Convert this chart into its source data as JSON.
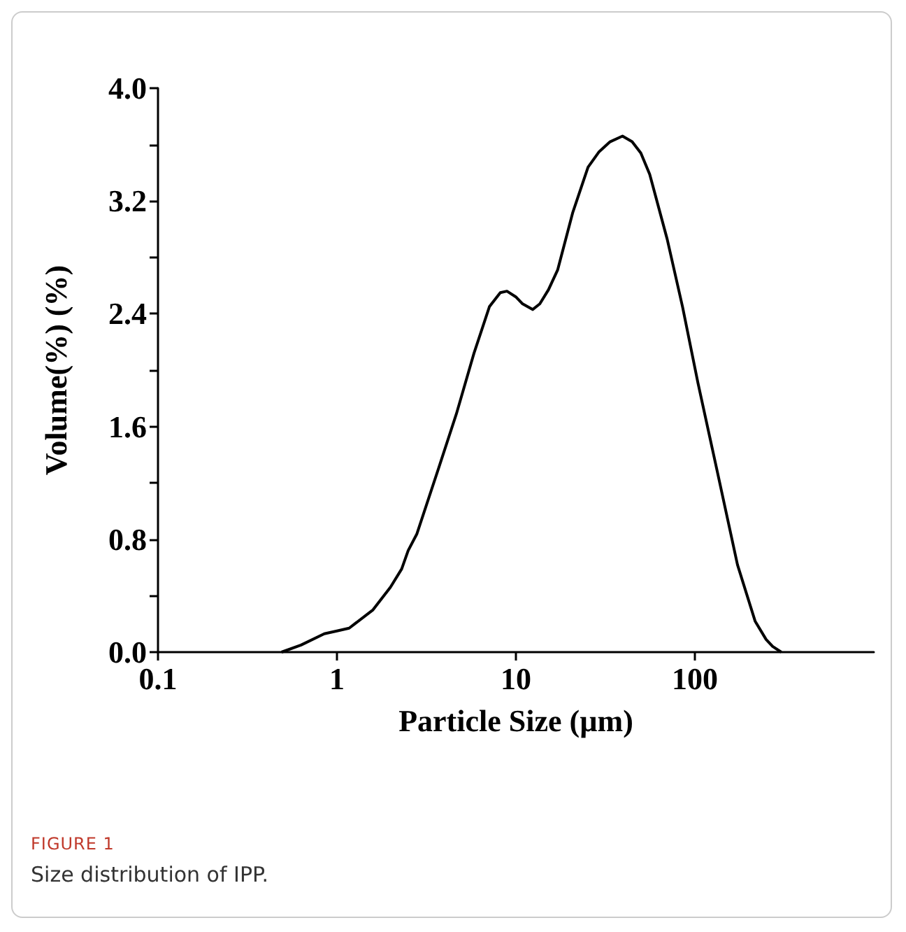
{
  "chart_data": {
    "type": "line",
    "xlabel": "Particle Size (µm)",
    "ylabel": "Volume(%) (%)",
    "log": "x",
    "xlim": [
      0.1,
      1000
    ],
    "xticks": [
      0.1,
      1,
      10,
      100
    ],
    "ylim": [
      0,
      4.0
    ],
    "yticks": [
      {
        "value": 0,
        "label": "0.0"
      },
      {
        "value": 0.4,
        "label": null
      },
      {
        "value": 0.8,
        "label": "0.8"
      },
      {
        "value": 1.2,
        "label": null
      },
      {
        "value": 1.6,
        "label": "1.6"
      },
      {
        "value": 2.0,
        "label": null
      },
      {
        "value": 2.4,
        "label": "2.4"
      },
      {
        "value": 2.8,
        "label": null
      },
      {
        "value": 3.2,
        "label": "3.2"
      },
      {
        "value": 3.6,
        "label": null
      },
      {
        "value": 4.0,
        "label": "4.0"
      }
    ],
    "grid": false,
    "marker": "none",
    "line_style": "solid",
    "annotations": [
      "FIGURE 1",
      "Size distribution of IPP."
    ],
    "series": [
      {
        "color": "#000000",
        "x": [
          0.49,
          0.63,
          0.85,
          1.0,
          1.17,
          1.59,
          1.99,
          2.3,
          2.5,
          2.8,
          3.71,
          4.65,
          5.83,
          7.11,
          8.18,
          8.91,
          9.98,
          10.9,
          12.4,
          13.6,
          15.2,
          17.1,
          20.8,
          25.3,
          29.2,
          33.6,
          39.4,
          44.6,
          49.9,
          55.9,
          70.0,
          85.3,
          104,
          134,
          173,
          217,
          250,
          272,
          304
        ],
        "values": [
          0,
          0.05,
          0.13,
          0.15,
          0.17,
          0.3,
          0.46,
          0.59,
          0.72,
          0.84,
          1.31,
          1.69,
          2.12,
          2.45,
          2.55,
          2.56,
          2.52,
          2.47,
          2.43,
          2.47,
          2.57,
          2.71,
          3.12,
          3.44,
          3.55,
          3.62,
          3.66,
          3.62,
          3.54,
          3.39,
          2.93,
          2.45,
          1.91,
          1.27,
          0.62,
          0.22,
          0.09,
          0.04,
          0
        ]
      }
    ]
  }
}
